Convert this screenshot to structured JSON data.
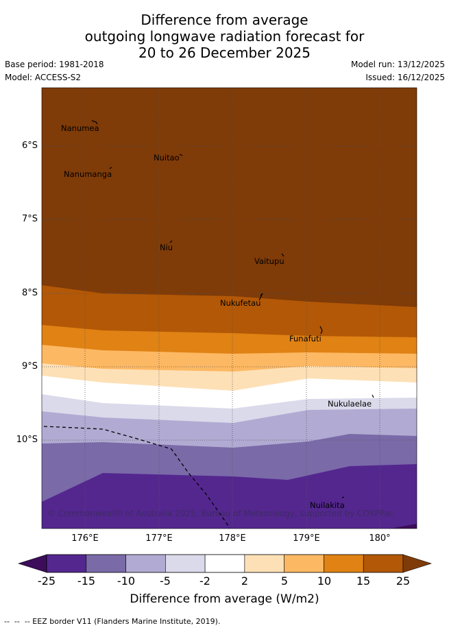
{
  "title": {
    "line1": "Difference from average",
    "line2": "outgoing longwave radiation forecast for",
    "line3": "20 to 26 December 2025"
  },
  "meta": {
    "base_period": "Base period: 1981-2018",
    "model": "Model: ACCESS-S2",
    "model_run": "Model run: 13/12/2025",
    "issued": "Issued: 16/12/2025"
  },
  "axes": {
    "lat_labels": [
      "6°S",
      "7°S",
      "8°S",
      "9°S",
      "10°S"
    ],
    "lon_labels": [
      "176°E",
      "177°E",
      "178°E",
      "179°E",
      "180°"
    ]
  },
  "places": [
    "Nanumea",
    "Nuitao",
    "Nanumanga",
    "Niu",
    "Vaitupu",
    "Nukufetau",
    "Funafuti",
    "Nukulaelae",
    "Nuilakita"
  ],
  "copyright": "© Commonwealth of Australia 2025, Bureau of Meteorology, supported by COSPPac",
  "colorbar": {
    "ticks": [
      "-25",
      "-15",
      "-10",
      "-5",
      "-2",
      "2",
      "5",
      "10",
      "15",
      "25"
    ],
    "colors": [
      "#3c0d5a",
      "#54278f",
      "#7a6aa8",
      "#b1aad2",
      "#dadaeb",
      "#ffffff",
      "#fee0b6",
      "#fdb863",
      "#e08214",
      "#b35806",
      "#7f3b08"
    ],
    "title": "Difference from average (W/m2)"
  },
  "legend_note": "-- EEZ border V11 (Flanders Marine Institute, 2019)."
}
